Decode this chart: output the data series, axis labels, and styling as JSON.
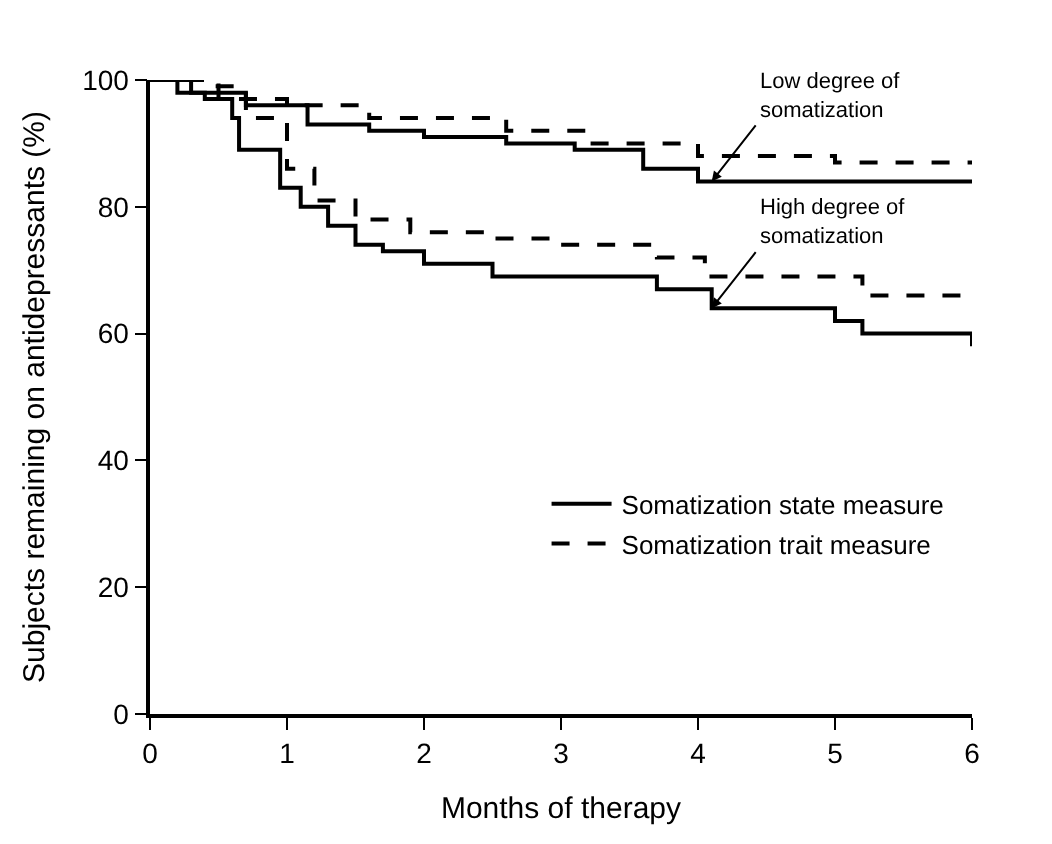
{
  "chart_data": {
    "type": "step",
    "xlabel": "Months of therapy",
    "ylabel": "Subjects remaining on antidepressants (%)",
    "xlim": [
      0,
      6
    ],
    "ylim": [
      0,
      100
    ],
    "xticks": [
      0,
      1,
      2,
      3,
      4,
      5,
      6
    ],
    "yticks": [
      0,
      20,
      40,
      60,
      80,
      100
    ],
    "legend": "bottom right",
    "marker": "none",
    "series": [
      {
        "name": "Somatization state measure",
        "color": "#000000",
        "line_style": "solid",
        "x": [
          0,
          0.3,
          0.7,
          1.15,
          1.6,
          2.0,
          2.6,
          3.1,
          3.6,
          4.0,
          6.0
        ],
        "values": [
          100,
          98,
          96,
          93,
          92,
          91,
          90,
          89,
          86,
          84,
          84
        ]
      },
      {
        "name": "Somatization trait measure",
        "color": "#000000",
        "line_style": "dashed",
        "x": [
          0,
          0.4,
          0.7,
          1.0,
          1.6,
          2.6,
          3.2,
          4.0,
          5.0,
          6.0
        ],
        "values": [
          100,
          99,
          97,
          96,
          94,
          92,
          90,
          88,
          87,
          87
        ]
      },
      {
        "color": "#000000",
        "line_style": "solid",
        "x": [
          0,
          0.2,
          0.4,
          0.6,
          0.65,
          0.95,
          1.1,
          1.3,
          1.5,
          1.7,
          2.0,
          2.5,
          3.7,
          4.1,
          5.0,
          5.2,
          5.95,
          6.0
        ],
        "values": [
          100,
          98,
          97,
          94,
          89,
          83,
          80,
          77,
          74,
          73,
          71,
          69,
          67,
          64,
          62,
          60,
          60,
          58
        ]
      },
      {
        "color": "#000000",
        "line_style": "dashed",
        "x": [
          0,
          0.5,
          0.7,
          1.0,
          1.2,
          1.5,
          1.9,
          2.5,
          3.0,
          3.7,
          4.05,
          5.2,
          6.0
        ],
        "values": [
          100,
          97,
          94,
          86,
          81,
          78,
          76,
          75,
          74,
          72,
          69,
          66,
          65
        ]
      }
    ],
    "annotations": [
      {
        "text": "Low degree of somatization",
        "x": 4.1,
        "y": 84
      },
      {
        "text": "High degree of somatization",
        "x": 4.1,
        "y": 64
      }
    ]
  }
}
